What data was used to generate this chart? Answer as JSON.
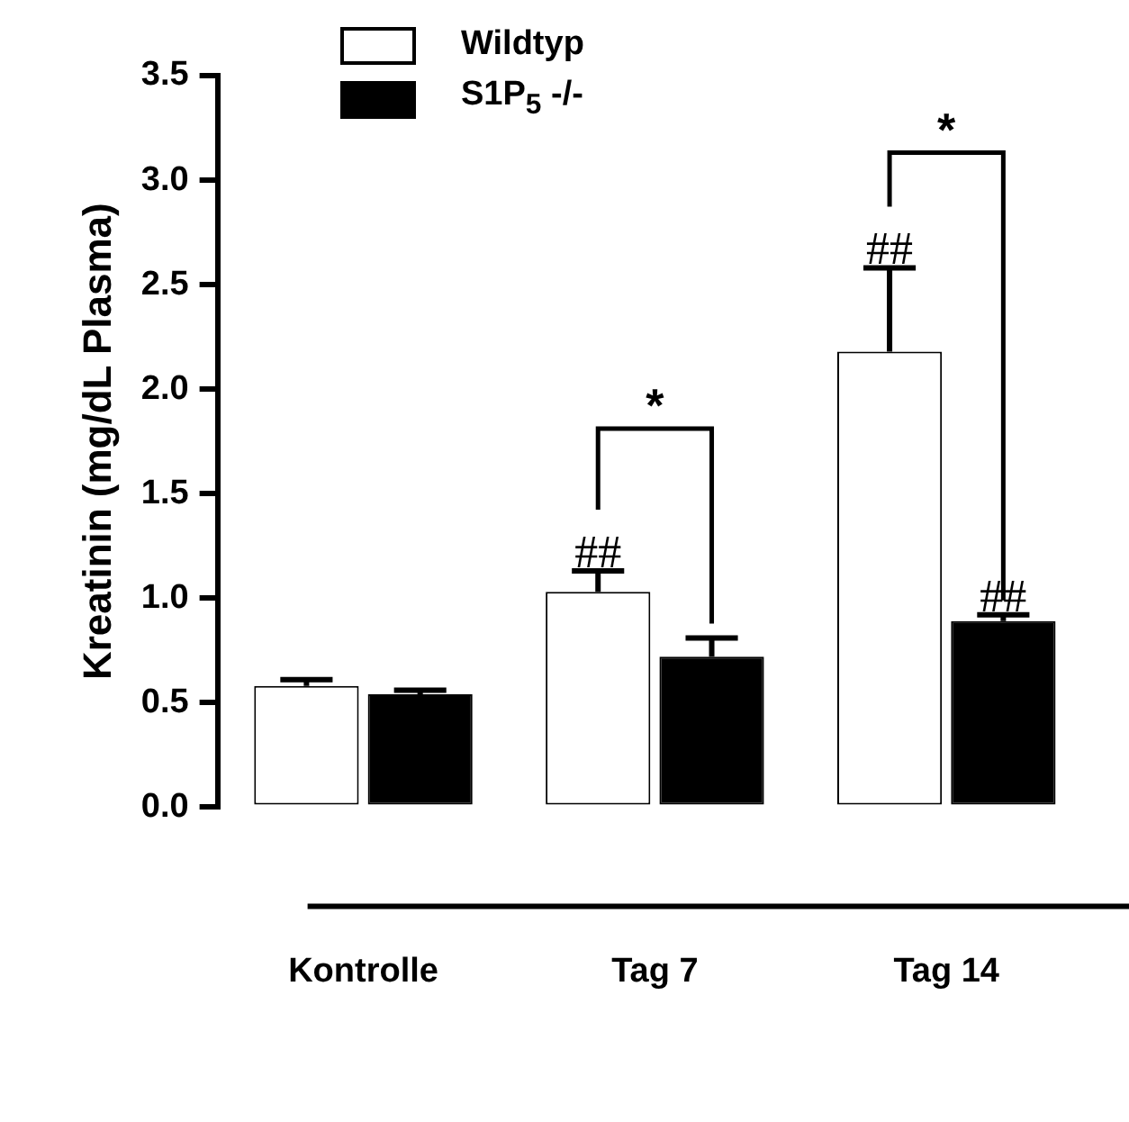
{
  "chart_data": {
    "type": "bar",
    "ylabel": "Kreatinin (mg/dL Plasma)",
    "categories": [
      "Kontrolle",
      "Tag 7",
      "Tag 14"
    ],
    "series": [
      {
        "name": "Wildtyp",
        "color": "#ffffff",
        "values": [
          0.58,
          1.03,
          2.18
        ],
        "errors": [
          0.03,
          0.1,
          0.4
        ]
      },
      {
        "name": "S1P$_{5}$ -/-",
        "color": "#000000",
        "values": [
          0.54,
          0.72,
          0.89
        ],
        "errors": [
          0.02,
          0.09,
          0.03
        ]
      }
    ],
    "ylim": [
      0,
      3.5
    ],
    "yticks": [
      {
        "value": 0,
        "label": "0.0"
      },
      {
        "value": 0.5,
        "label": "0.5"
      },
      {
        "value": 1,
        "label": "1.0"
      },
      {
        "value": 1.5,
        "label": "1.5"
      },
      {
        "value": 2,
        "label": "2.0"
      },
      {
        "value": 2.5,
        "label": "2.5"
      },
      {
        "value": 3,
        "label": "3.0"
      },
      {
        "value": 3.5,
        "label": "3.5"
      }
    ],
    "legend": "top left",
    "grid": false,
    "annotations": [
      "##",
      "##",
      {
        "text": "##",
        "x": "Tag 14",
        "y": 0.92
      },
      "*",
      "*"
    ]
  }
}
